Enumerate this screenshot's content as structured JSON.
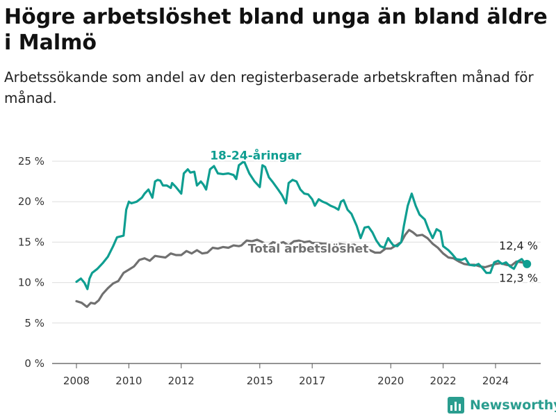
{
  "title": "Högre arbetslöshet bland unga än bland äldre i Malmö",
  "subtitle": "Arbetssökande som andel av den registerbaserade arbetskraften månad för månad.",
  "logo": {
    "text": "Newsworthy",
    "icon": "chart-logo-icon"
  },
  "chart_data": {
    "type": "line",
    "title": "Högre arbetslöshet bland unga än bland äldre i Malmö",
    "subtitle": "Arbetssökande som andel av den registerbaserade arbetskraften månad för månad.",
    "xlabel": "",
    "ylabel": "",
    "xlim": [
      2007.5,
      2026.5
    ],
    "ylim": [
      0,
      27
    ],
    "x_ticks": [
      2008,
      2010,
      2012,
      2015,
      2017,
      2020,
      2022,
      2024
    ],
    "y_ticks": [
      {
        "value": 0,
        "label": "0 %"
      },
      {
        "value": 5,
        "label": "5 %"
      },
      {
        "value": 10,
        "label": "10 %"
      },
      {
        "value": 15,
        "label": "15 %"
      },
      {
        "value": 20,
        "label": "20 %"
      },
      {
        "value": 25,
        "label": "25 %"
      }
    ],
    "grid": "horizontal",
    "series": [
      {
        "name": "18-24-åringar",
        "color": "#0f9e91",
        "end_label": "12,3 %",
        "label_x": 2013.1,
        "label_y": 25.2,
        "points": [
          [
            2008.0,
            10.1
          ],
          [
            2008.17,
            10.5
          ],
          [
            2008.3,
            10.0
          ],
          [
            2008.42,
            9.2
          ],
          [
            2008.5,
            10.5
          ],
          [
            2008.6,
            11.2
          ],
          [
            2008.8,
            11.7
          ],
          [
            2009.0,
            12.4
          ],
          [
            2009.2,
            13.2
          ],
          [
            2009.4,
            14.5
          ],
          [
            2009.55,
            15.6
          ],
          [
            2009.8,
            15.8
          ],
          [
            2009.9,
            19.0
          ],
          [
            2010.0,
            20.0
          ],
          [
            2010.1,
            19.8
          ],
          [
            2010.3,
            20.0
          ],
          [
            2010.5,
            20.5
          ],
          [
            2010.6,
            21.0
          ],
          [
            2010.75,
            21.5
          ],
          [
            2010.9,
            20.5
          ],
          [
            2011.0,
            22.5
          ],
          [
            2011.1,
            22.7
          ],
          [
            2011.2,
            22.6
          ],
          [
            2011.3,
            22.0
          ],
          [
            2011.45,
            22.0
          ],
          [
            2011.6,
            21.7
          ],
          [
            2011.65,
            22.3
          ],
          [
            2011.8,
            21.8
          ],
          [
            2012.0,
            21.0
          ],
          [
            2012.1,
            23.5
          ],
          [
            2012.25,
            24.0
          ],
          [
            2012.35,
            23.6
          ],
          [
            2012.5,
            23.7
          ],
          [
            2012.6,
            22.0
          ],
          [
            2012.75,
            22.5
          ],
          [
            2012.85,
            22.1
          ],
          [
            2012.95,
            21.5
          ],
          [
            2013.1,
            24.0
          ],
          [
            2013.25,
            24.4
          ],
          [
            2013.4,
            23.5
          ],
          [
            2013.6,
            23.4
          ],
          [
            2013.8,
            23.5
          ],
          [
            2014.0,
            23.3
          ],
          [
            2014.1,
            22.8
          ],
          [
            2014.2,
            24.5
          ],
          [
            2014.4,
            25.0
          ],
          [
            2014.6,
            23.5
          ],
          [
            2014.8,
            22.5
          ],
          [
            2015.0,
            21.8
          ],
          [
            2015.1,
            24.5
          ],
          [
            2015.2,
            24.3
          ],
          [
            2015.35,
            23.0
          ],
          [
            2015.5,
            22.4
          ],
          [
            2015.7,
            21.5
          ],
          [
            2015.85,
            20.8
          ],
          [
            2016.0,
            19.8
          ],
          [
            2016.1,
            22.3
          ],
          [
            2016.25,
            22.7
          ],
          [
            2016.4,
            22.5
          ],
          [
            2016.55,
            21.5
          ],
          [
            2016.7,
            21.0
          ],
          [
            2016.85,
            20.9
          ],
          [
            2017.0,
            20.3
          ],
          [
            2017.1,
            19.5
          ],
          [
            2017.25,
            20.3
          ],
          [
            2017.4,
            20.0
          ],
          [
            2017.55,
            19.8
          ],
          [
            2017.7,
            19.5
          ],
          [
            2017.85,
            19.3
          ],
          [
            2018.0,
            19.0
          ],
          [
            2018.1,
            20.0
          ],
          [
            2018.2,
            20.2
          ],
          [
            2018.35,
            19.0
          ],
          [
            2018.5,
            18.5
          ],
          [
            2018.7,
            17.0
          ],
          [
            2018.85,
            15.5
          ],
          [
            2019.0,
            16.8
          ],
          [
            2019.15,
            16.9
          ],
          [
            2019.3,
            16.2
          ],
          [
            2019.45,
            15.2
          ],
          [
            2019.6,
            14.5
          ],
          [
            2019.75,
            14.3
          ],
          [
            2019.9,
            15.5
          ],
          [
            2020.0,
            15.0
          ],
          [
            2020.1,
            14.6
          ],
          [
            2020.25,
            14.5
          ],
          [
            2020.4,
            15.0
          ],
          [
            2020.5,
            17.0
          ],
          [
            2020.65,
            19.5
          ],
          [
            2020.8,
            21.0
          ],
          [
            2020.95,
            19.5
          ],
          [
            2021.1,
            18.4
          ],
          [
            2021.3,
            17.8
          ],
          [
            2021.45,
            16.5
          ],
          [
            2021.6,
            15.5
          ],
          [
            2021.75,
            16.6
          ],
          [
            2021.9,
            16.3
          ],
          [
            2022.0,
            14.5
          ],
          [
            2022.2,
            14.0
          ],
          [
            2022.35,
            13.5
          ],
          [
            2022.5,
            12.9
          ],
          [
            2022.7,
            12.8
          ],
          [
            2022.85,
            13.0
          ],
          [
            2023.0,
            12.2
          ],
          [
            2023.2,
            12.1
          ],
          [
            2023.35,
            12.3
          ],
          [
            2023.5,
            11.8
          ],
          [
            2023.65,
            11.2
          ],
          [
            2023.8,
            11.2
          ],
          [
            2023.95,
            12.5
          ],
          [
            2024.1,
            12.7
          ],
          [
            2024.25,
            12.3
          ],
          [
            2024.4,
            12.5
          ],
          [
            2024.55,
            12.0
          ],
          [
            2024.7,
            11.7
          ],
          [
            2024.85,
            12.6
          ],
          [
            2025.0,
            12.9
          ],
          [
            2025.1,
            12.5
          ],
          [
            2025.2,
            12.3
          ]
        ]
      },
      {
        "name": "Total arbetslöshet",
        "color": "#707070",
        "end_label": "12,4 %",
        "label_x": 2016.85,
        "label_y": 13.7,
        "points": [
          [
            2008.0,
            7.7
          ],
          [
            2008.2,
            7.5
          ],
          [
            2008.4,
            7.0
          ],
          [
            2008.55,
            7.5
          ],
          [
            2008.7,
            7.4
          ],
          [
            2008.85,
            7.8
          ],
          [
            2009.0,
            8.6
          ],
          [
            2009.2,
            9.3
          ],
          [
            2009.4,
            9.9
          ],
          [
            2009.6,
            10.2
          ],
          [
            2009.8,
            11.2
          ],
          [
            2010.0,
            11.6
          ],
          [
            2010.2,
            12.0
          ],
          [
            2010.4,
            12.8
          ],
          [
            2010.6,
            13.0
          ],
          [
            2010.8,
            12.7
          ],
          [
            2011.0,
            13.3
          ],
          [
            2011.2,
            13.2
          ],
          [
            2011.4,
            13.1
          ],
          [
            2011.6,
            13.6
          ],
          [
            2011.8,
            13.4
          ],
          [
            2012.0,
            13.4
          ],
          [
            2012.2,
            13.9
          ],
          [
            2012.4,
            13.6
          ],
          [
            2012.6,
            14.0
          ],
          [
            2012.8,
            13.6
          ],
          [
            2013.0,
            13.7
          ],
          [
            2013.2,
            14.3
          ],
          [
            2013.4,
            14.2
          ],
          [
            2013.6,
            14.4
          ],
          [
            2013.8,
            14.3
          ],
          [
            2014.0,
            14.6
          ],
          [
            2014.2,
            14.5
          ],
          [
            2014.3,
            14.6
          ],
          [
            2014.5,
            15.2
          ],
          [
            2014.7,
            15.1
          ],
          [
            2014.9,
            15.3
          ],
          [
            2015.1,
            15.0
          ],
          [
            2015.3,
            14.5
          ],
          [
            2015.5,
            15.0
          ],
          [
            2015.7,
            14.8
          ],
          [
            2015.9,
            15.0
          ],
          [
            2016.1,
            14.6
          ],
          [
            2016.3,
            15.1
          ],
          [
            2016.5,
            15.2
          ],
          [
            2016.7,
            15.0
          ],
          [
            2016.9,
            15.1
          ],
          [
            2017.0,
            14.9
          ],
          [
            2017.2,
            14.9
          ],
          [
            2017.4,
            14.8
          ],
          [
            2017.6,
            14.8
          ],
          [
            2017.8,
            14.6
          ],
          [
            2018.0,
            14.8
          ],
          [
            2018.2,
            14.7
          ],
          [
            2018.4,
            14.6
          ],
          [
            2018.6,
            14.7
          ],
          [
            2018.8,
            14.3
          ],
          [
            2019.0,
            14.0
          ],
          [
            2019.2,
            14.0
          ],
          [
            2019.4,
            13.7
          ],
          [
            2019.6,
            13.7
          ],
          [
            2019.8,
            14.2
          ],
          [
            2020.0,
            14.2
          ],
          [
            2020.2,
            14.6
          ],
          [
            2020.4,
            15.0
          ],
          [
            2020.55,
            15.9
          ],
          [
            2020.7,
            16.5
          ],
          [
            2020.85,
            16.2
          ],
          [
            2021.0,
            15.8
          ],
          [
            2021.2,
            15.9
          ],
          [
            2021.4,
            15.5
          ],
          [
            2021.6,
            14.8
          ],
          [
            2021.8,
            14.3
          ],
          [
            2022.0,
            13.6
          ],
          [
            2022.2,
            13.1
          ],
          [
            2022.4,
            13.0
          ],
          [
            2022.6,
            12.6
          ],
          [
            2022.8,
            12.3
          ],
          [
            2023.0,
            12.2
          ],
          [
            2023.2,
            12.2
          ],
          [
            2023.4,
            12.0
          ],
          [
            2023.6,
            11.9
          ],
          [
            2023.8,
            12.1
          ],
          [
            2024.0,
            12.3
          ],
          [
            2024.2,
            12.4
          ],
          [
            2024.4,
            12.2
          ],
          [
            2024.6,
            12.1
          ],
          [
            2024.8,
            12.6
          ],
          [
            2025.0,
            12.5
          ],
          [
            2025.2,
            12.4
          ]
        ]
      }
    ]
  }
}
